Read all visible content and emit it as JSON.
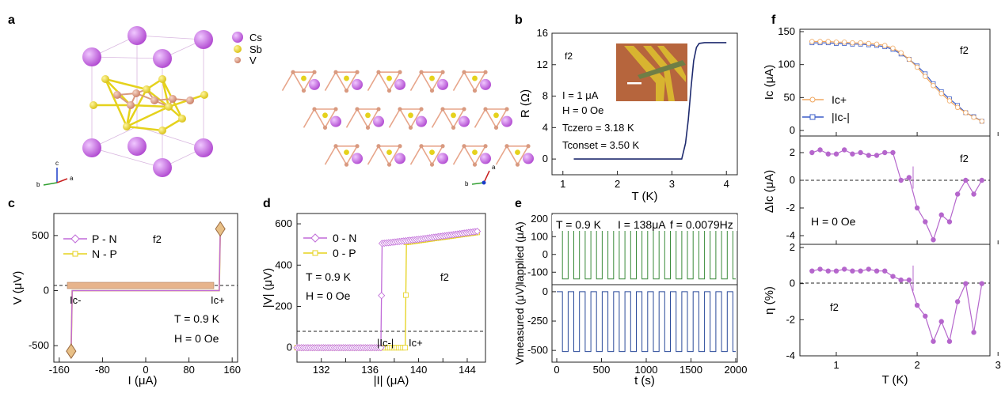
{
  "panels": {
    "a": {
      "label": "a",
      "legend": [
        "Cs",
        "Sb",
        "V"
      ],
      "colors": {
        "Cs": "#c05fd6",
        "Sb": "#e5d21c",
        "V": "#d99a80"
      },
      "axes1": [
        "c",
        "b",
        "a"
      ],
      "axes2": [
        "a",
        "b"
      ]
    },
    "b": {
      "label": "b",
      "sample": "f2",
      "notes": [
        "I = 1 μA",
        "H = 0 Oe",
        "Tczero = 3.18 K",
        "Tconset = 3.50 K"
      ],
      "xlabel": "T (K)",
      "ylabel": "R (Ω)",
      "xticks": [
        "1",
        "2",
        "3",
        "4"
      ],
      "yticks": [
        "0",
        "4",
        "8",
        "12",
        "16"
      ]
    },
    "c": {
      "label": "c",
      "sample": "f2",
      "legend": [
        "P - N",
        "N - P"
      ],
      "notes": [
        "T = 0.9 K",
        "H = 0 Oe"
      ],
      "ann": [
        "Ic-",
        "Ic+"
      ],
      "xlabel": "I (μA)",
      "ylabel": "V (μV)",
      "xticks": [
        "-160",
        "-80",
        "0",
        "80",
        "160"
      ],
      "yticks": [
        "500",
        "0",
        "-500"
      ]
    },
    "d": {
      "label": "d",
      "sample": "f2",
      "legend": [
        "0 - N",
        "0 - P"
      ],
      "notes": [
        "T = 0.9 K",
        "H = 0 Oe"
      ],
      "ann": [
        "|Ic-|",
        "Ic+"
      ],
      "xlabel": "|I| (μA)",
      "ylabel": "|V| (μV)",
      "xticks": [
        "132",
        "134",
        "136",
        "138",
        "140",
        "142",
        "144"
      ],
      "yticks": [
        "0",
        "200",
        "400",
        "600"
      ]
    },
    "e": {
      "label": "e",
      "header": [
        "T = 0.9 K",
        "I = 138μA",
        "f = 0.0079Hz"
      ],
      "ylabel_top": "Iapplied (μA)",
      "ylabel_bot": "Vmeasured (μV)",
      "xlabel": "t (s)",
      "xticks": [
        "0",
        "500",
        "1000",
        "1500",
        "2000"
      ],
      "yticks_top": [
        "200",
        "100",
        "0",
        "-100"
      ],
      "yticks_bot": [
        "0",
        "-250",
        "-500"
      ]
    },
    "f": {
      "label": "f",
      "sample": "f2",
      "legend": [
        "Ic+",
        "|Ic-|"
      ],
      "note": "H = 0 Oe",
      "xlabel": "T (K)",
      "ylabel1": "Ic (μA)",
      "ylabel2": "ΔIc (μA)",
      "ylabel3": "η (%)",
      "xticks": [
        "1",
        "2",
        "3"
      ],
      "yticks1": [
        "150",
        "100",
        "50",
        "0"
      ],
      "yticks2": [
        "2",
        "0",
        "-2",
        "-4"
      ],
      "yticks3": [
        "2",
        "0",
        "-2",
        "-4"
      ]
    }
  },
  "chart_data": [
    {
      "type": "line",
      "title": "",
      "xlabel": "T (K)",
      "ylabel": "R (Ω)",
      "xlim": [
        0.8,
        4.2
      ],
      "ylim": [
        -2,
        16
      ],
      "x": [
        1.2,
        2.0,
        3.0,
        3.18,
        3.25,
        3.3,
        3.35,
        3.4,
        3.45,
        3.5,
        3.6,
        4.0
      ],
      "series": [
        {
          "values": [
            0,
            0,
            0,
            0,
            2,
            5,
            9,
            12.5,
            14.2,
            14.7,
            14.8,
            14.8
          ]
        }
      ]
    },
    {
      "type": "line",
      "title": "",
      "xlabel": "I (μA)",
      "ylabel": "V (μV)",
      "xlim": [
        -170,
        170
      ],
      "ylim": [
        -650,
        700
      ],
      "series": [
        {
          "name": "P - N",
          "x": [
            -138,
            -136,
            0,
            136,
            138
          ],
          "values": [
            -550,
            0,
            0,
            0,
            560
          ]
        },
        {
          "name": "N - P",
          "x": [
            -138,
            -136,
            0,
            136,
            138
          ],
          "values": [
            -550,
            0,
            0,
            0,
            560
          ]
        }
      ]
    },
    {
      "type": "line",
      "title": "",
      "xlabel": "|I| (μA)",
      "ylabel": "|V| (μV)",
      "xlim": [
        130,
        145.5
      ],
      "ylim": [
        -70,
        650
      ],
      "series": [
        {
          "name": "0 - N",
          "x": [
            130,
            136.9,
            137.0,
            140,
            145
          ],
          "values": [
            0,
            0,
            505,
            525,
            565
          ]
        },
        {
          "name": "0 - P",
          "x": [
            130,
            138.9,
            139.0,
            142,
            145
          ],
          "values": [
            0,
            0,
            510,
            535,
            560
          ]
        }
      ]
    },
    {
      "type": "line",
      "title": "",
      "xlabel": "t (s)",
      "xlim": [
        0,
        2000
      ],
      "period_s": 127,
      "series": [
        {
          "name": "Iapplied (μA)",
          "levels": [
            138,
            -138
          ]
        },
        {
          "name": "Vmeasured (μV)",
          "levels": [
            0,
            -510
          ]
        }
      ]
    },
    {
      "type": "line",
      "title": "",
      "xlabel": "T (K)",
      "x": [
        0.7,
        0.8,
        0.9,
        1.0,
        1.1,
        1.2,
        1.3,
        1.4,
        1.5,
        1.6,
        1.7,
        1.8,
        1.9,
        2.0,
        2.1,
        2.2,
        2.3,
        2.4,
        2.5,
        2.6,
        2.7,
        2.8
      ],
      "series": [
        {
          "name": "Ic+",
          "values": [
            135,
            135,
            135,
            134,
            134,
            133,
            133,
            132,
            131,
            129,
            125,
            118,
            108,
            96,
            82,
            68,
            56,
            45,
            35,
            27,
            20,
            14
          ]
        },
        {
          "name": "|Ic-|",
          "values": [
            133,
            133,
            133,
            132,
            132,
            131,
            131,
            130,
            129,
            127,
            123,
            116,
            108,
            98,
            86,
            71,
            59,
            48,
            38,
            27,
            21,
            14
          ]
        },
        {
          "name": "ΔIc (μA)",
          "values": [
            2.0,
            2.2,
            1.9,
            1.9,
            2.2,
            1.9,
            2.0,
            1.8,
            1.8,
            2.0,
            2.0,
            0.0,
            0.2,
            -2.0,
            -3.0,
            -4.3,
            -2.5,
            -3.0,
            -1.0,
            0.0,
            -1.0,
            0.0
          ]
        },
        {
          "name": "η (%)",
          "values": [
            0.7,
            0.8,
            0.7,
            0.7,
            0.8,
            0.7,
            0.7,
            0.8,
            0.7,
            0.7,
            0.4,
            0.2,
            0.2,
            -1.2,
            -1.8,
            -3.2,
            -2.1,
            -3.2,
            -1.0,
            0.0,
            -2.7,
            0.0
          ]
        }
      ]
    }
  ]
}
